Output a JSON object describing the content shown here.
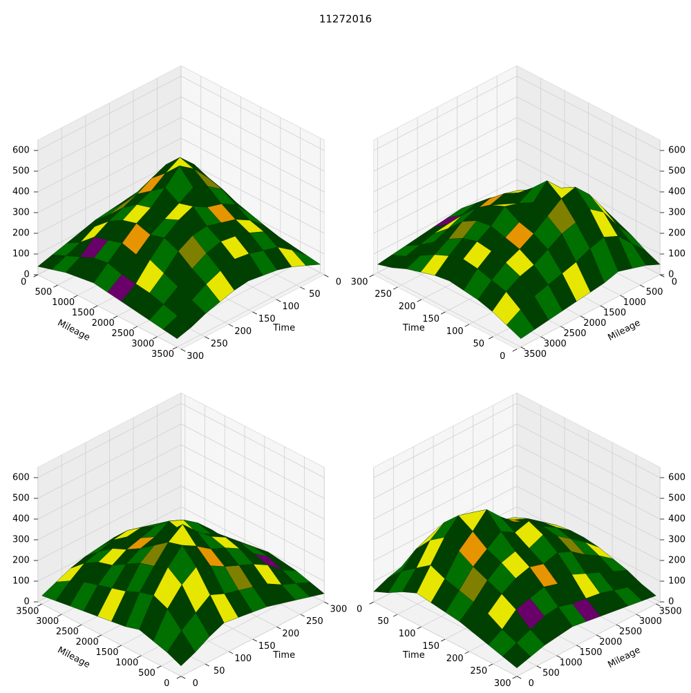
{
  "chart_data": {
    "type": "surface3d",
    "title": "11272016",
    "xlabel": "Time",
    "ylabel": "Mileage",
    "x": [
      0,
      30,
      60,
      90,
      120,
      150,
      180,
      210,
      240,
      270,
      300
    ],
    "y": [
      0,
      350,
      700,
      1050,
      1400,
      1750,
      2100,
      2450,
      2800,
      3150,
      3500
    ],
    "z": [
      [
        50,
        80,
        120,
        150,
        140,
        130,
        120,
        100,
        80,
        60,
        40
      ],
      [
        80,
        150,
        200,
        250,
        220,
        200,
        180,
        160,
        120,
        90,
        60
      ],
      [
        100,
        220,
        300,
        350,
        320,
        280,
        250,
        220,
        180,
        120,
        80
      ],
      [
        120,
        250,
        350,
        420,
        380,
        330,
        300,
        260,
        200,
        150,
        90
      ],
      [
        100,
        230,
        320,
        400,
        450,
        380,
        320,
        280,
        220,
        160,
        100
      ],
      [
        90,
        200,
        300,
        350,
        380,
        340,
        300,
        260,
        200,
        140,
        90
      ],
      [
        80,
        180,
        260,
        300,
        320,
        360,
        330,
        280,
        210,
        130,
        80
      ],
      [
        70,
        160,
        220,
        260,
        280,
        300,
        290,
        250,
        180,
        120,
        70
      ],
      [
        60,
        140,
        200,
        230,
        250,
        260,
        240,
        200,
        150,
        100,
        60
      ],
      [
        50,
        110,
        160,
        180,
        200,
        210,
        190,
        160,
        120,
        80,
        50
      ],
      [
        40,
        70,
        100,
        120,
        130,
        140,
        130,
        110,
        90,
        60,
        40
      ]
    ],
    "face_colors": [
      "#004000",
      "#007000",
      "#e6e600",
      "#e69500",
      "#6a006a",
      "#808000"
    ],
    "face_color_index": [
      [
        0,
        1,
        0,
        2,
        0,
        1,
        0,
        0,
        1,
        0
      ],
      [
        1,
        0,
        2,
        0,
        1,
        5,
        0,
        2,
        0,
        1
      ],
      [
        0,
        2,
        1,
        0,
        3,
        0,
        1,
        0,
        4,
        0
      ],
      [
        1,
        0,
        0,
        2,
        0,
        1,
        2,
        0,
        1,
        0
      ],
      [
        0,
        1,
        5,
        0,
        1,
        0,
        0,
        3,
        0,
        1
      ],
      [
        2,
        0,
        1,
        0,
        0,
        2,
        1,
        0,
        0,
        4
      ],
      [
        0,
        1,
        0,
        3,
        1,
        0,
        0,
        1,
        2,
        0
      ],
      [
        1,
        0,
        2,
        0,
        0,
        1,
        5,
        0,
        1,
        0
      ],
      [
        0,
        0,
        1,
        0,
        2,
        0,
        1,
        0,
        0,
        1
      ],
      [
        1,
        2,
        0,
        1,
        0,
        0,
        2,
        1,
        0,
        0
      ]
    ],
    "xlim": [
      0,
      300
    ],
    "ylim": [
      0,
      3600
    ],
    "zlim": [
      0,
      650
    ],
    "xticks": [
      0,
      50,
      100,
      150,
      200,
      250,
      300
    ],
    "yticks": [
      0,
      500,
      1000,
      1500,
      2000,
      2500,
      3000,
      3500
    ],
    "zticks": [
      0,
      100,
      200,
      300,
      400,
      500,
      600
    ],
    "grid": true,
    "views": [
      {
        "azim": 135
      },
      {
        "azim": 225
      },
      {
        "azim": 315
      },
      {
        "azim": 45
      }
    ]
  }
}
